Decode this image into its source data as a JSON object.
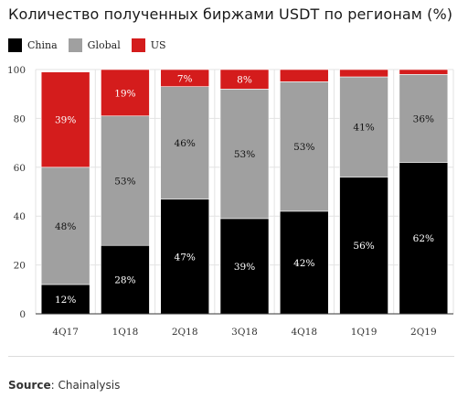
{
  "title": "Количество полученных биржами USDT по регионам (%)",
  "legend": {
    "items": [
      {
        "label": "China",
        "color": "#000000"
      },
      {
        "label": "Global",
        "color": "#a0a0a0"
      },
      {
        "label": "US",
        "color": "#d41c1c"
      }
    ]
  },
  "footer": {
    "source_label": "Source",
    "source_sep": ": ",
    "source_text": "Chainalysis"
  },
  "chart_data": {
    "type": "bar",
    "stacked": true,
    "title": "Количество полученных биржами USDT по регионам (%)",
    "xlabel": "",
    "ylabel": "",
    "ylim": [
      0,
      100
    ],
    "yticks": [
      0,
      20,
      40,
      60,
      80,
      100
    ],
    "grid": true,
    "legend_position": "top-left",
    "categories": [
      "4Q17",
      "1Q18",
      "2Q18",
      "3Q18",
      "4Q18",
      "1Q19",
      "2Q19"
    ],
    "series": [
      {
        "name": "China",
        "color": "#000000",
        "label_color": "#ffffff",
        "values": [
          12,
          28,
          47,
          39,
          42,
          56,
          62
        ],
        "labels": [
          "12%",
          "28%",
          "47%",
          "39%",
          "42%",
          "56%",
          "62%"
        ]
      },
      {
        "name": "Global",
        "color": "#a0a0a0",
        "label_color": "#111111",
        "values": [
          48,
          53,
          46,
          53,
          53,
          41,
          36
        ],
        "labels": [
          "48%",
          "53%",
          "46%",
          "53%",
          "53%",
          "41%",
          "36%"
        ]
      },
      {
        "name": "US",
        "color": "#d41c1c",
        "label_color": "#ffffff",
        "values": [
          39,
          19,
          7,
          8,
          5,
          3,
          2
        ],
        "labels": [
          "39%",
          "19%",
          "7%",
          "8%",
          "",
          "",
          ""
        ]
      }
    ]
  }
}
